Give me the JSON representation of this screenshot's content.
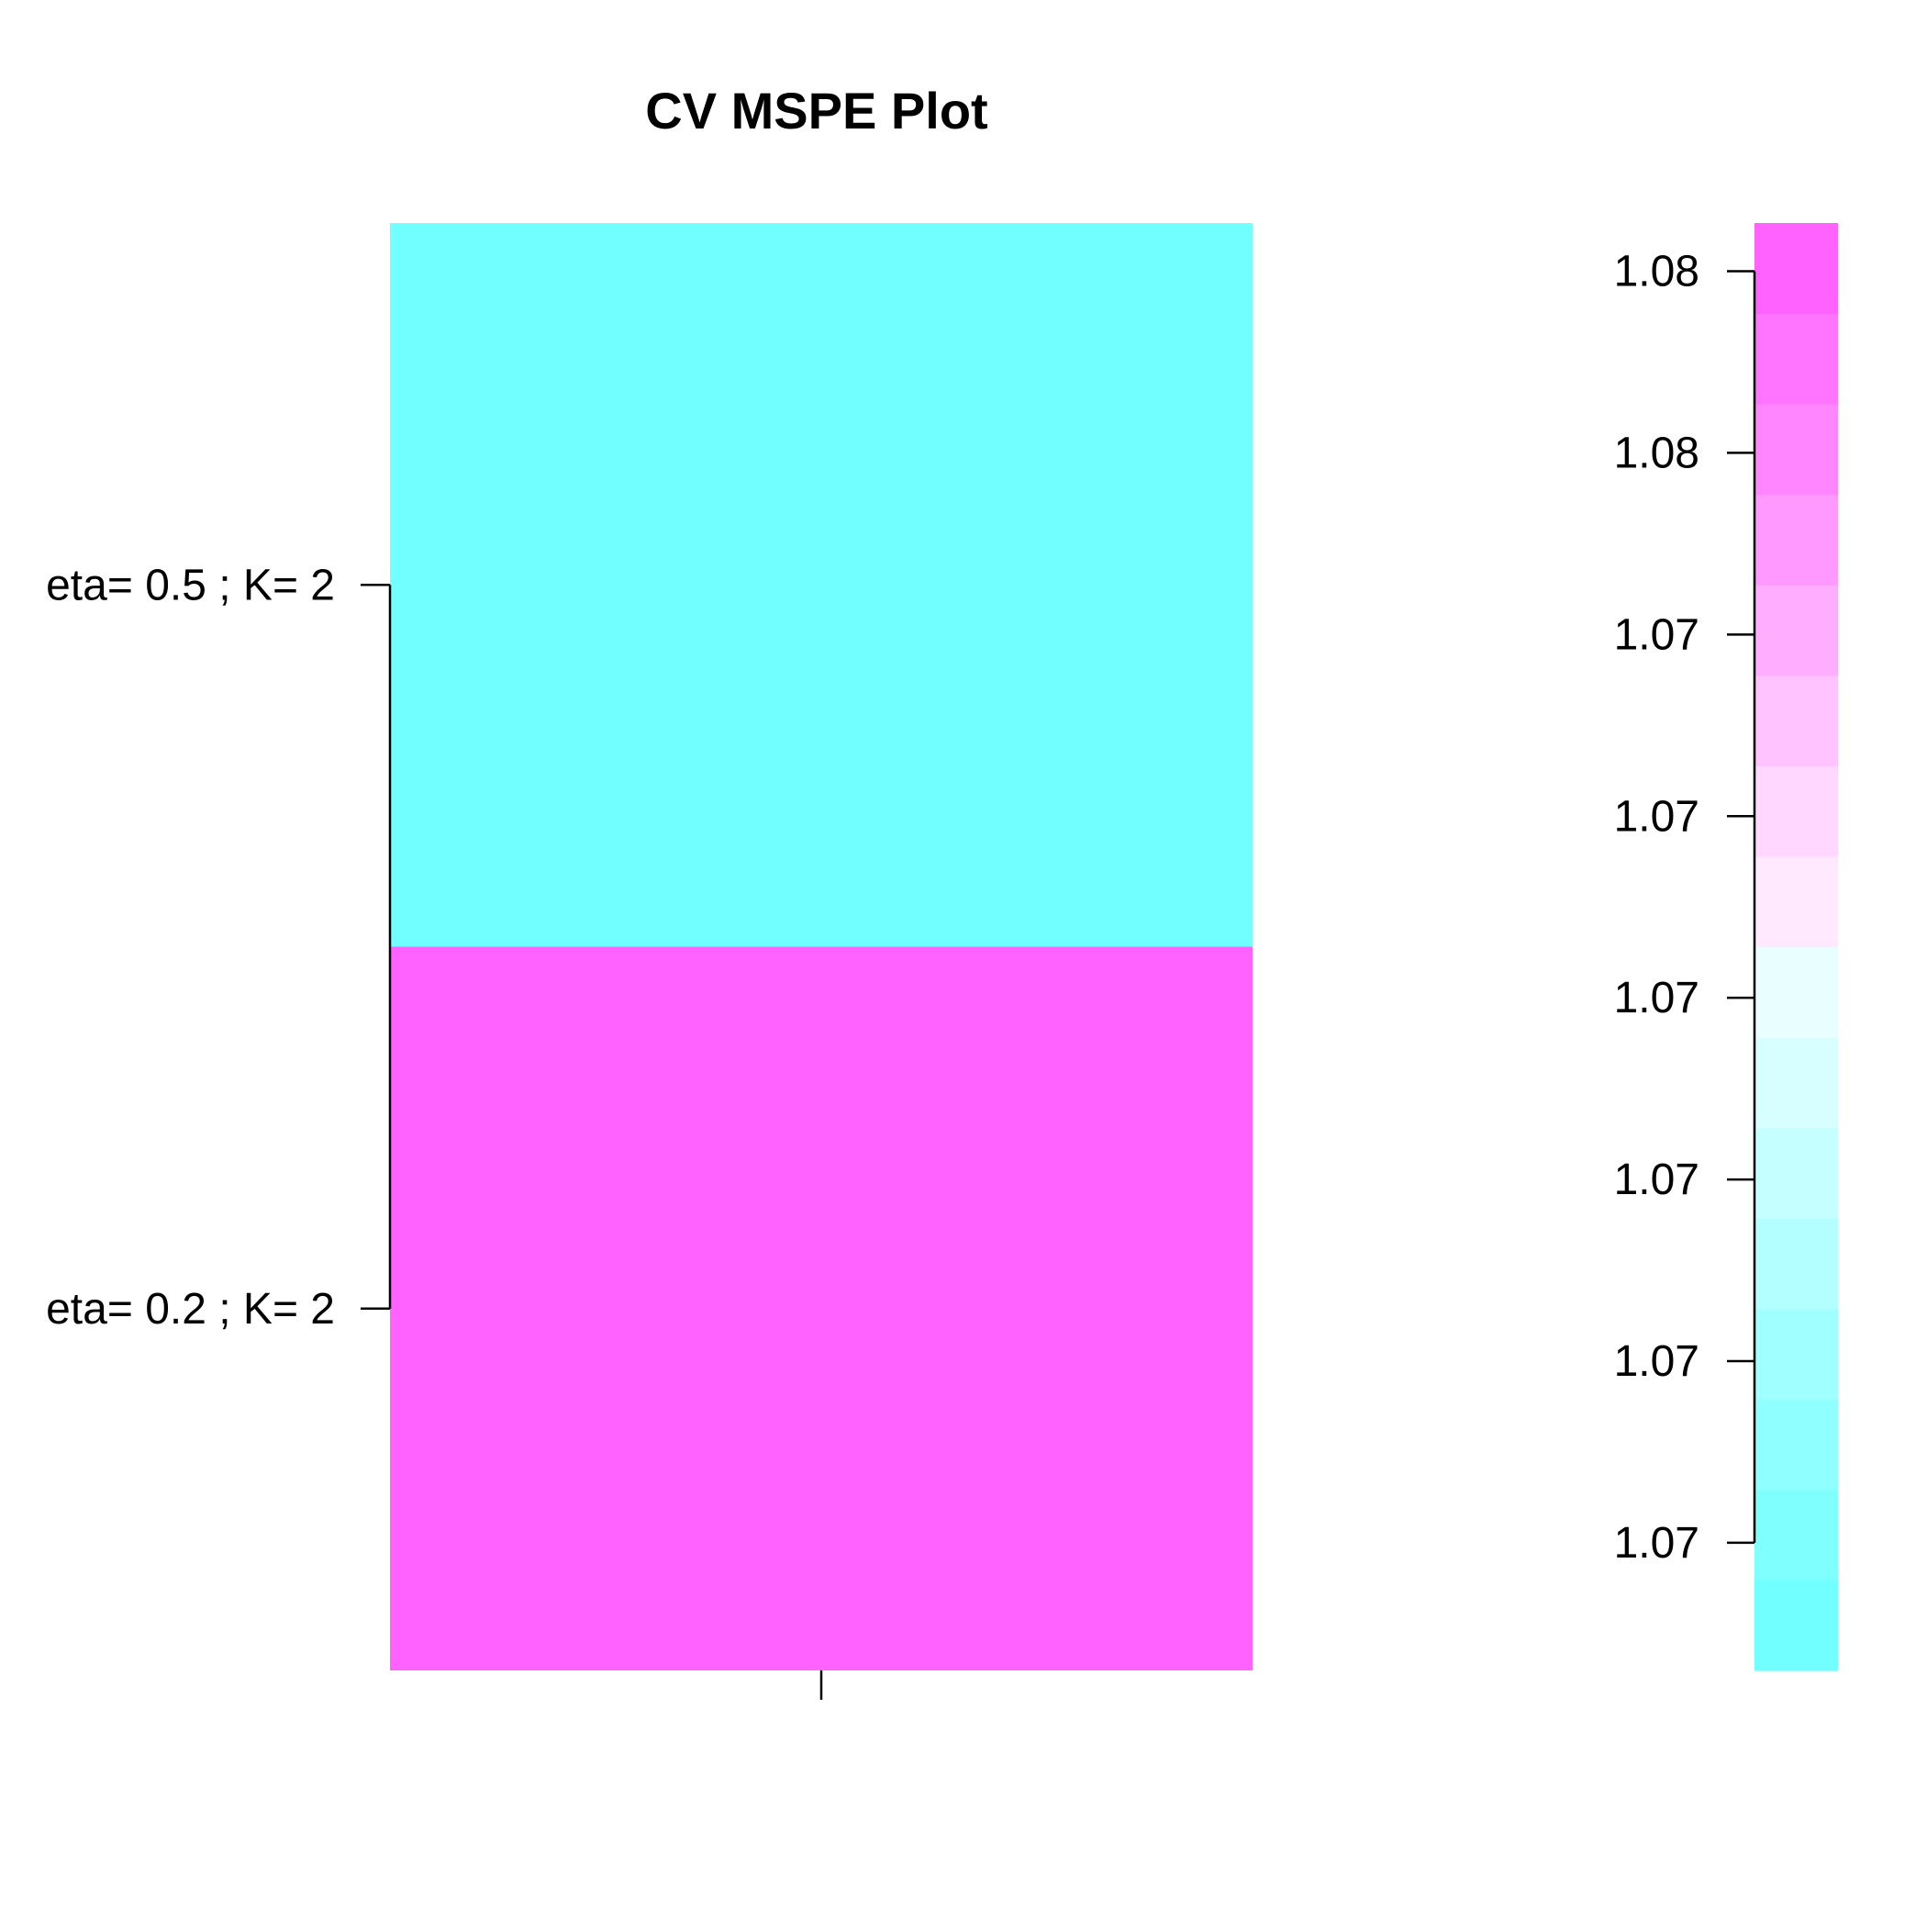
{
  "chart_data": {
    "type": "heatmap",
    "title": "CV MSPE Plot",
    "xlabel": "",
    "ylabel": "",
    "x_categories": [
      ""
    ],
    "y_categories": [
      "eta= 0.2 ; K= 2",
      "eta= 0.5 ; K= 2"
    ],
    "cells": [
      {
        "row": "eta= 0.2 ; K= 2",
        "col": "",
        "color": "#FF62FF"
      },
      {
        "row": "eta= 0.5 ; K= 2",
        "col": "",
        "color": "#72FFFF"
      }
    ],
    "legend": {
      "placement": "right",
      "tick_labels": [
        "1.07",
        "1.07",
        "1.07",
        "1.07",
        "1.07",
        "1.07",
        "1.08",
        "1.08"
      ],
      "tick_fractions": [
        0.0882,
        0.2137,
        0.3392,
        0.4647,
        0.5902,
        0.7157,
        0.8412,
        0.9667
      ],
      "colors": [
        "#72FFFF",
        "#80FFFF",
        "#8FFFFF",
        "#A0FFFF",
        "#B3FFFF",
        "#C5FFFF",
        "#D8FFFF",
        "#E9FFFF",
        "#FFE9FF",
        "#FFD7FF",
        "#FFC3FF",
        "#FFADFF",
        "#FF99FF",
        "#FF86FF",
        "#FF75FF",
        "#FF62FF"
      ]
    },
    "grid": false
  }
}
